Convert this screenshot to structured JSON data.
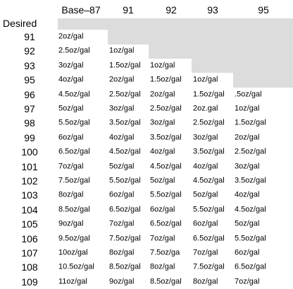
{
  "table": {
    "corner": "Desired",
    "columns": [
      "Base–87",
      "91",
      "92",
      "93",
      "95"
    ],
    "rows": [
      {
        "label": "91",
        "cells": [
          "2oz/gal",
          null,
          null,
          null,
          null
        ]
      },
      {
        "label": "92",
        "cells": [
          "2.5oz/gal",
          "1oz/gal",
          null,
          null,
          null
        ]
      },
      {
        "label": "93",
        "cells": [
          "3oz/gal",
          "1.5oz/gal",
          "1oz/gal",
          null,
          null
        ]
      },
      {
        "label": "95",
        "cells": [
          "4oz/gal",
          "2oz/gal",
          "1.5oz/gal",
          "1oz/gal",
          null
        ]
      },
      {
        "label": "96",
        "cells": [
          "4.5oz/gal",
          "2.5oz/gal",
          "2oz/gal",
          "1.5oz/gal",
          ".5oz/gal"
        ]
      },
      {
        "label": "97",
        "cells": [
          "5oz/gal",
          "3oz/gal",
          "2.5oz/gal",
          "2oz.gal",
          "1oz/gal"
        ]
      },
      {
        "label": "98",
        "cells": [
          "5.5oz/gal",
          "3.5oz/gal",
          "3oz/gal",
          "2.5oz/gal",
          "1.5oz/gal"
        ]
      },
      {
        "label": "99",
        "cells": [
          "6oz/gal",
          "4oz/gal",
          "3.5oz/gal",
          "3oz/gal",
          "2oz/gal"
        ]
      },
      {
        "label": "100",
        "cells": [
          "6.5oz/gal",
          "4.5oz/gal",
          "4oz/gal",
          "3.5oz/gal",
          "2.5oz/gal"
        ]
      },
      {
        "label": "101",
        "cells": [
          "7oz/gal",
          "5oz/gal",
          "4.5oz/gal",
          "4oz/gal",
          "3oz/gal"
        ]
      },
      {
        "label": "102",
        "cells": [
          "7.5oz/gal",
          "5.5oz/gal",
          "5oz/gal",
          "4.5oz/gal",
          "3.5oz/gal"
        ]
      },
      {
        "label": "103",
        "cells": [
          "8oz/gal",
          "6oz/gal",
          "5.5oz/gal",
          "5oz/gal",
          "4oz/gal"
        ]
      },
      {
        "label": "104",
        "cells": [
          "8.5oz/gal",
          "6.5oz/gal",
          "6oz/gal",
          "5.5oz/gal",
          "4.5oz/gal"
        ]
      },
      {
        "label": "105",
        "cells": [
          "9oz/gal",
          "7oz/gal",
          "6.5oz/gal",
          "6oz/gal",
          "5oz/gal"
        ]
      },
      {
        "label": "106",
        "cells": [
          "9.5oz/gal",
          "7.5oz/gal",
          "7oz/gal",
          "6.5oz/gal",
          "5.5oz/gal"
        ]
      },
      {
        "label": "107",
        "cells": [
          "10oz/gal",
          "8oz/gal",
          "7.5oz/ga",
          "7oz/gal",
          "6oz/gal"
        ]
      },
      {
        "label": "108",
        "cells": [
          "10.5oz/gal",
          "8.5oz/gal",
          "8oz/gal",
          "7.5oz/gal",
          "6.5oz/gal"
        ]
      },
      {
        "label": "109",
        "cells": [
          "11oz/gal",
          "9oz/gal",
          "8.5oz/gal",
          "8oz/gal",
          "7oz/gal"
        ]
      }
    ]
  }
}
